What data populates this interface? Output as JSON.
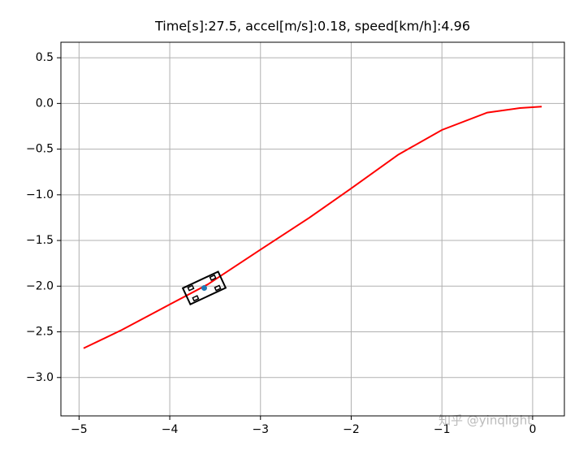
{
  "chart_data": {
    "type": "line",
    "title": "Time[s]:27.5, accel[m/s]:0.18, speed[km/h]:4.96",
    "series": [
      {
        "name": "trajectory",
        "color": "#ff0000",
        "x": [
          -4.95,
          -4.53,
          -4.0,
          -3.58,
          -3.0,
          -2.46,
          -2.0,
          -1.48,
          -1.0,
          -0.5,
          -0.14,
          0.1
        ],
        "values": [
          -2.68,
          -2.48,
          -2.2,
          -1.98,
          -1.6,
          -1.25,
          -0.93,
          -0.56,
          -0.29,
          -0.1,
          -0.05,
          -0.035
        ]
      },
      {
        "name": "vehicle",
        "color": "#1f77b4",
        "x": [
          -3.62
        ],
        "values": [
          -2.02
        ]
      }
    ],
    "xlim": [
      -5.2,
      0.35
    ],
    "ylim": [
      -3.42,
      0.67
    ],
    "xticks": [
      {
        "value": -5,
        "label": "−5"
      },
      {
        "value": -4,
        "label": "−4"
      },
      {
        "value": -3,
        "label": "−3"
      },
      {
        "value": -2,
        "label": "−2"
      },
      {
        "value": -1,
        "label": "−1"
      },
      0
    ],
    "yticks": [
      {
        "value": 0.5,
        "label": "0.5"
      },
      {
        "value": 0,
        "label": "0.0"
      },
      {
        "value": -0.5,
        "label": "−0.5"
      },
      {
        "value": -1,
        "label": "−1.0"
      },
      {
        "value": -1.5,
        "label": "−1.5"
      },
      {
        "value": -2,
        "label": "−2.0"
      },
      {
        "value": -2.5,
        "label": "−2.5"
      },
      {
        "value": -3,
        "label": "−3.0"
      }
    ],
    "grid": true,
    "watermark": "知乎 @yinqlight"
  }
}
